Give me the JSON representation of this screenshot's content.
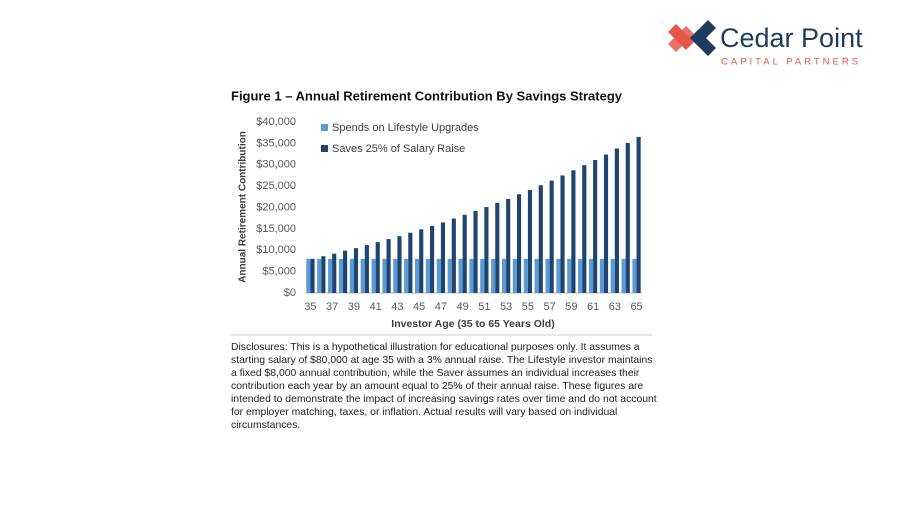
{
  "header": {
    "logo_name": "Cedar Point",
    "logo_sub": "CAPITAL PARTNERS"
  },
  "chart_data": {
    "type": "bar",
    "title": "Figure 1 – Annual Retirement Contribution By Savings Strategy",
    "y_label": "Annual Retirement Contribution",
    "x_label": "Investor Age (35 to 65 Years Old)",
    "categories": [
      "35",
      null,
      "37",
      null,
      "39",
      null,
      "41",
      null,
      "43",
      null,
      "45",
      null,
      "47",
      null,
      "49",
      null,
      "51",
      null,
      "53",
      null,
      "55",
      null,
      "57",
      null,
      "59",
      null,
      "61",
      null,
      "63",
      null,
      "65"
    ],
    "series": [
      {
        "name": "Spends on Lifestyle Upgrades",
        "color": "#5b9bd5",
        "values": [
          8000,
          8000,
          8000,
          8000,
          8000,
          8000,
          8000,
          8000,
          8000,
          8000,
          8000,
          8000,
          8000,
          8000,
          8000,
          8000,
          8000,
          8000,
          8000,
          8000,
          8000,
          8000,
          8000,
          8000,
          8000,
          8000,
          8000,
          8000,
          8000,
          8000,
          8000
        ]
      },
      {
        "name": "Saves 25% of Salary Raise",
        "color": "#1f4470",
        "values": [
          8000,
          8600,
          9200,
          9900,
          10500,
          11200,
          11900,
          12600,
          13300,
          14100,
          14900,
          15700,
          16500,
          17400,
          18300,
          19200,
          20100,
          21100,
          22000,
          23100,
          24100,
          25200,
          26300,
          27500,
          28700,
          29900,
          31100,
          32400,
          33800,
          35100,
          36500
        ]
      }
    ],
    "ylim": [
      0,
      40000
    ],
    "yticks": [
      {
        "value": 0,
        "label": "$0"
      },
      {
        "value": 5000,
        "label": "$5,000"
      },
      {
        "value": 10000,
        "label": "$10,000"
      },
      {
        "value": 15000,
        "label": "$15,000"
      },
      {
        "value": 20000,
        "label": "$20,000"
      },
      {
        "value": 25000,
        "label": "$25,000"
      },
      {
        "value": 30000,
        "label": "$30,000"
      },
      {
        "value": 35000,
        "label": "$35,000"
      },
      {
        "value": 40000,
        "label": "$40,000"
      }
    ],
    "grid": false,
    "legend": "upper left"
  },
  "disclosures": "Disclosures: This is a hypothetical illustration for educational purposes only. It assumes a starting salary of $80,000 at age 35 with a 3% annual raise. The Lifestyle investor maintains a fixed $8,000 annual contribution, while the Saver assumes an individual increases their contribution each year by an amount equal to 25% of their annual raise. These figures are intended to demonstrate the impact of increasing savings rates over time and do not account for employer matching, taxes, or inflation. Actual results will vary based on individual circumstances."
}
